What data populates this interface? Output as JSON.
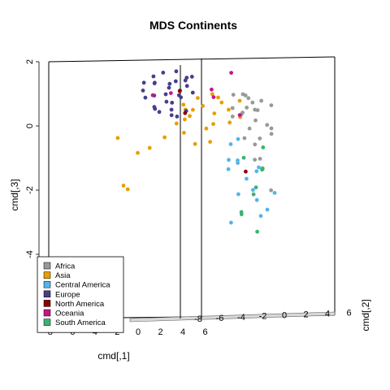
{
  "chart_data": {
    "type": "scatter",
    "title": "MDS Continents",
    "xlabel": "cmd[,1]",
    "ylabel": "cmd[,3]",
    "zlabel": "cmd[,2]",
    "projection": "3d-scatterplot",
    "ylim": [
      -6,
      2
    ],
    "y_ticks": [
      "2",
      "0",
      "-2",
      "-4"
    ],
    "x_ticks": [
      "-8",
      "-6",
      "-4",
      "-2",
      "0",
      "2",
      "4",
      "6"
    ],
    "z_ticks": [
      "-8",
      "-6",
      "-4",
      "-2",
      "0",
      "2",
      "4",
      "6"
    ],
    "legend_position": "bottom-left",
    "series": [
      {
        "name": "Africa",
        "color": "#999999",
        "points": [
          [
            2.8,
            1.0,
            0.3
          ],
          [
            3.2,
            0.8,
            0.0
          ],
          [
            3.5,
            0.5,
            0.2
          ],
          [
            2.6,
            1.1,
            -0.2
          ],
          [
            3.9,
            0.4,
            0.5
          ],
          [
            2.9,
            0.6,
            0.1
          ],
          [
            3.1,
            0.3,
            -0.4
          ],
          [
            3.7,
            0.2,
            -0.6
          ],
          [
            2.4,
            0.9,
            0.6
          ],
          [
            3.3,
            -0.2,
            0.4
          ],
          [
            4.2,
            0.0,
            -0.3
          ],
          [
            2.7,
            0.4,
            0.2
          ],
          [
            3.6,
            -0.4,
            -0.1
          ],
          [
            3.0,
            0.2,
            0.7
          ],
          [
            4.5,
            -0.3,
            0.1
          ],
          [
            2.9,
            -0.5,
            0.3
          ],
          [
            3.4,
            1.0,
            -0.5
          ],
          [
            3.8,
            -0.8,
            0.6
          ],
          [
            2.5,
            0.1,
            0.8
          ],
          [
            3.2,
            -1.1,
            -0.2
          ],
          [
            4.0,
            -1.5,
            0.2
          ],
          [
            4.4,
            -2.2,
            0.0
          ],
          [
            3.6,
            0.7,
            0.9
          ],
          [
            2.2,
            0.5,
            0.4
          ],
          [
            3.9,
            0.9,
            -0.7
          ],
          [
            3.1,
            -0.9,
            -0.8
          ]
        ]
      },
      {
        "name": "Asia",
        "color": "#E69F00",
        "points": [
          [
            0.2,
            0.6,
            0.3
          ],
          [
            0.8,
            0.4,
            0.1
          ],
          [
            -0.5,
            0.2,
            0.5
          ],
          [
            1.2,
            0.8,
            0.0
          ],
          [
            -1.0,
            0.5,
            0.2
          ],
          [
            0.5,
            -0.2,
            0.4
          ],
          [
            -0.8,
            -0.4,
            0.6
          ],
          [
            1.5,
            0.2,
            -0.3
          ],
          [
            -0.2,
            0.9,
            0.2
          ],
          [
            0.9,
            1.0,
            -0.1
          ],
          [
            -1.5,
            0.0,
            0.3
          ],
          [
            -2.2,
            -0.5,
            0.4
          ],
          [
            -4.0,
            -2.5,
            1.2
          ],
          [
            -3.5,
            -1.2,
            1.0
          ],
          [
            -4.5,
            -0.8,
            1.4
          ],
          [
            -2.8,
            -1.0,
            0.9
          ],
          [
            0.3,
            1.2,
            -0.4
          ],
          [
            1.8,
            0.5,
            0.2
          ],
          [
            -0.6,
            0.0,
            0.8
          ],
          [
            0.6,
            -0.6,
            0.2
          ],
          [
            2.0,
            1.0,
            -0.5
          ],
          [
            -1.2,
            0.7,
            0.1
          ],
          [
            1.1,
            -0.1,
            0.6
          ],
          [
            -0.3,
            -0.7,
            0.3
          ],
          [
            2.4,
            0.3,
            0.0
          ],
          [
            -4.2,
            -2.4,
            1.3
          ],
          [
            0.0,
            0.3,
            0.9
          ]
        ]
      },
      {
        "name": "Central America",
        "color": "#56B4E9",
        "points": [
          [
            1.5,
            -0.9,
            -1.0
          ],
          [
            2.0,
            -1.5,
            -1.1
          ],
          [
            1.2,
            -0.4,
            -0.8
          ],
          [
            2.6,
            -2.2,
            -1.2
          ],
          [
            3.0,
            -2.8,
            -1.0
          ],
          [
            2.2,
            -1.8,
            -1.4
          ],
          [
            1.8,
            -1.1,
            -0.6
          ],
          [
            3.2,
            -2.5,
            -1.3
          ],
          [
            0.9,
            -1.2,
            -1.0
          ],
          [
            2.5,
            -1.0,
            -1.5
          ],
          [
            1.4,
            -2.0,
            -1.2
          ],
          [
            3.6,
            -1.9,
            -1.4
          ],
          [
            1.0,
            -3.0,
            -1.1
          ],
          [
            2.8,
            -1.3,
            -0.9
          ],
          [
            0.7,
            -0.8,
            -1.3
          ],
          [
            1.6,
            -0.2,
            -0.9
          ]
        ]
      },
      {
        "name": "Europe",
        "color": "#483D8B",
        "points": [
          [
            -1.2,
            1.1,
            0.4
          ],
          [
            -1.8,
            1.3,
            0.5
          ],
          [
            -0.6,
            1.2,
            0.6
          ],
          [
            -2.2,
            1.0,
            0.3
          ],
          [
            -1.5,
            0.6,
            0.7
          ],
          [
            -2.8,
            0.9,
            0.5
          ],
          [
            -0.9,
            0.8,
            0.9
          ],
          [
            -2.0,
            1.6,
            0.8
          ],
          [
            -3.0,
            1.4,
            0.2
          ],
          [
            -1.0,
            1.5,
            0.2
          ],
          [
            -2.5,
            0.4,
            0.9
          ],
          [
            -1.6,
            0.2,
            0.6
          ],
          [
            -0.4,
            1.4,
            0.9
          ],
          [
            -3.3,
            0.8,
            0.6
          ],
          [
            -2.1,
            0.2,
            1.0
          ],
          [
            -1.3,
            1.7,
            0.6
          ],
          [
            -2.7,
            1.5,
            0.7
          ],
          [
            -0.7,
            0.7,
            1.0
          ],
          [
            -1.9,
            0.5,
            0.2
          ],
          [
            -3.6,
            1.1,
            0.4
          ],
          [
            -1.1,
            0.1,
            0.8
          ],
          [
            -2.4,
            1.2,
            1.0
          ],
          [
            -0.3,
            1.0,
            0.5
          ],
          [
            -1.7,
            1.5,
            0.1
          ],
          [
            -2.9,
            0.5,
            0.3
          ],
          [
            -0.8,
            0.4,
            0.4
          ],
          [
            -2.3,
            0.8,
            0.1
          ],
          [
            -1.4,
            1.0,
            1.1
          ],
          [
            -3.1,
            1.2,
            1.0
          ],
          [
            -0.5,
            1.6,
            0.3
          ]
        ]
      },
      {
        "name": "North America",
        "color": "#8B0000",
        "points": [
          [
            -1.0,
            1.0,
            0.7
          ],
          [
            1.8,
            -1.2,
            -1.3
          ],
          [
            -0.8,
            0.3,
            0.5
          ]
        ]
      },
      {
        "name": "Oceania",
        "color": "#C71585",
        "points": [
          [
            -1.5,
            0.9,
            0.8
          ],
          [
            0.4,
            1.3,
            -0.2
          ],
          [
            0.9,
            0.9,
            0.3
          ],
          [
            1.6,
            1.9,
            -0.3
          ],
          [
            -2.6,
            0.8,
            0.9
          ],
          [
            2.3,
            0.4,
            -0.1
          ]
        ]
      },
      {
        "name": "South America",
        "color": "#3CB371",
        "points": [
          [
            1.9,
            -2.8,
            -0.8
          ],
          [
            2.6,
            -1.0,
            -1.7
          ],
          [
            3.0,
            -0.4,
            -1.2
          ],
          [
            1.3,
            -2.5,
            -1.6
          ],
          [
            2.4,
            -3.2,
            -1.5
          ],
          [
            3.3,
            -1.3,
            -0.7
          ],
          [
            2.1,
            -1.6,
            -1.8
          ],
          [
            1.6,
            -0.7,
            -1.4
          ],
          [
            2.9,
            -2.2,
            -0.5
          ]
        ]
      }
    ]
  }
}
